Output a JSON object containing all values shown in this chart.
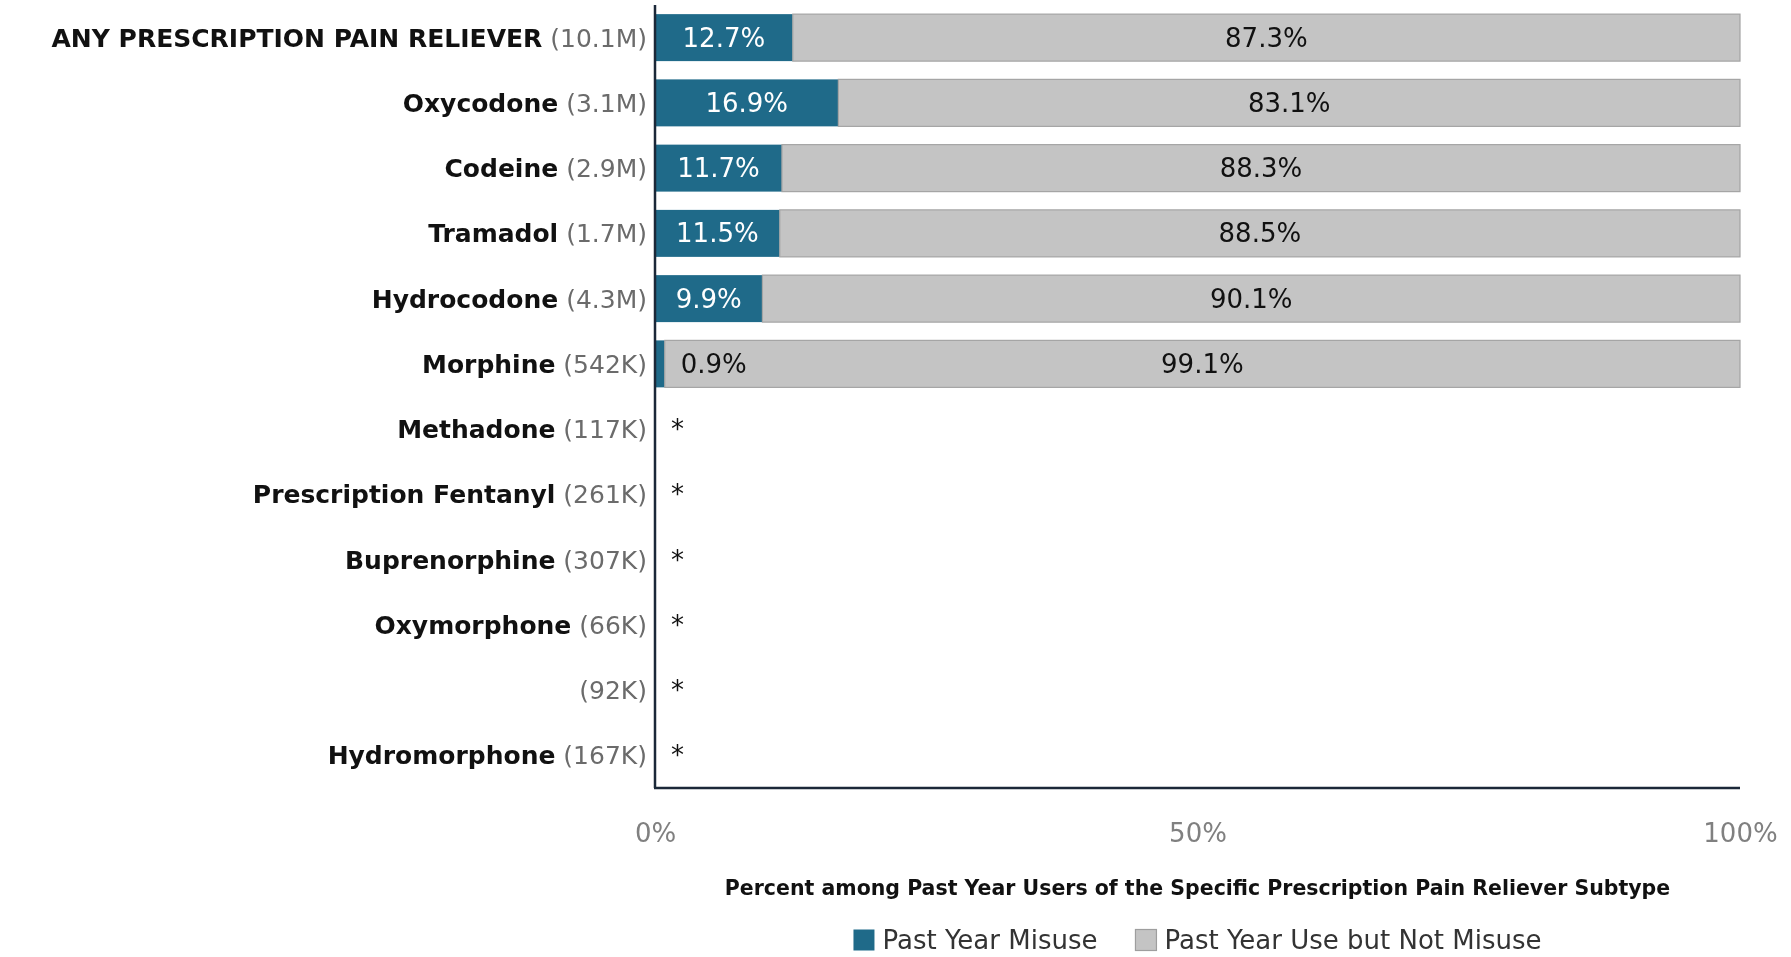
{
  "chart_data": {
    "type": "bar",
    "orientation": "horizontal",
    "stacked": true,
    "categories": [
      "ANY PRESCRIPTION PAIN RELIEVER (10.1M)",
      "Oxycodone (3.1M)",
      "Codeine (2.9M)",
      "Tramadol (1.7M)",
      "Hydrocodone (4.3M)",
      "Morphine (542K)",
      "Methadone (117K)",
      "Prescription Fentanyl (261K)",
      "Buprenorphine (307K)",
      "Oxymorphone (66K)",
      "(92K)",
      "Hydromorphone (167K)"
    ],
    "series": [
      {
        "name": "Past Year Misuse",
        "color": "#1f6a89",
        "values": [
          12.7,
          16.9,
          11.7,
          11.5,
          9.9,
          0.9,
          null,
          null,
          null,
          null,
          null,
          null
        ],
        "value_labels": [
          "12.7%",
          "16.9%",
          "11.7%",
          "11.5%",
          "9.9%",
          "0.9%",
          "*",
          "*",
          "*",
          "*",
          "*",
          "*"
        ]
      },
      {
        "name": "Past Year Use but Not Misuse",
        "color": "#c4c4c4",
        "values": [
          87.3,
          83.1,
          88.3,
          88.5,
          90.1,
          99.1,
          null,
          null,
          null,
          null,
          null,
          null
        ],
        "value_labels": [
          "87.3%",
          "83.1%",
          "88.3%",
          "88.5%",
          "90.1%",
          "99.1%",
          null,
          null,
          null,
          null,
          null,
          null
        ]
      }
    ],
    "xlim": [
      0,
      100
    ],
    "xticks": [
      {
        "value": 0,
        "label": "0%"
      },
      {
        "value": 50,
        "label": "50%"
      },
      {
        "value": 100,
        "label": "100%"
      }
    ],
    "xlabel": "Percent among Past Year Users of the Specific Prescription Pain Reliever Subtype",
    "legend": "bottom"
  }
}
